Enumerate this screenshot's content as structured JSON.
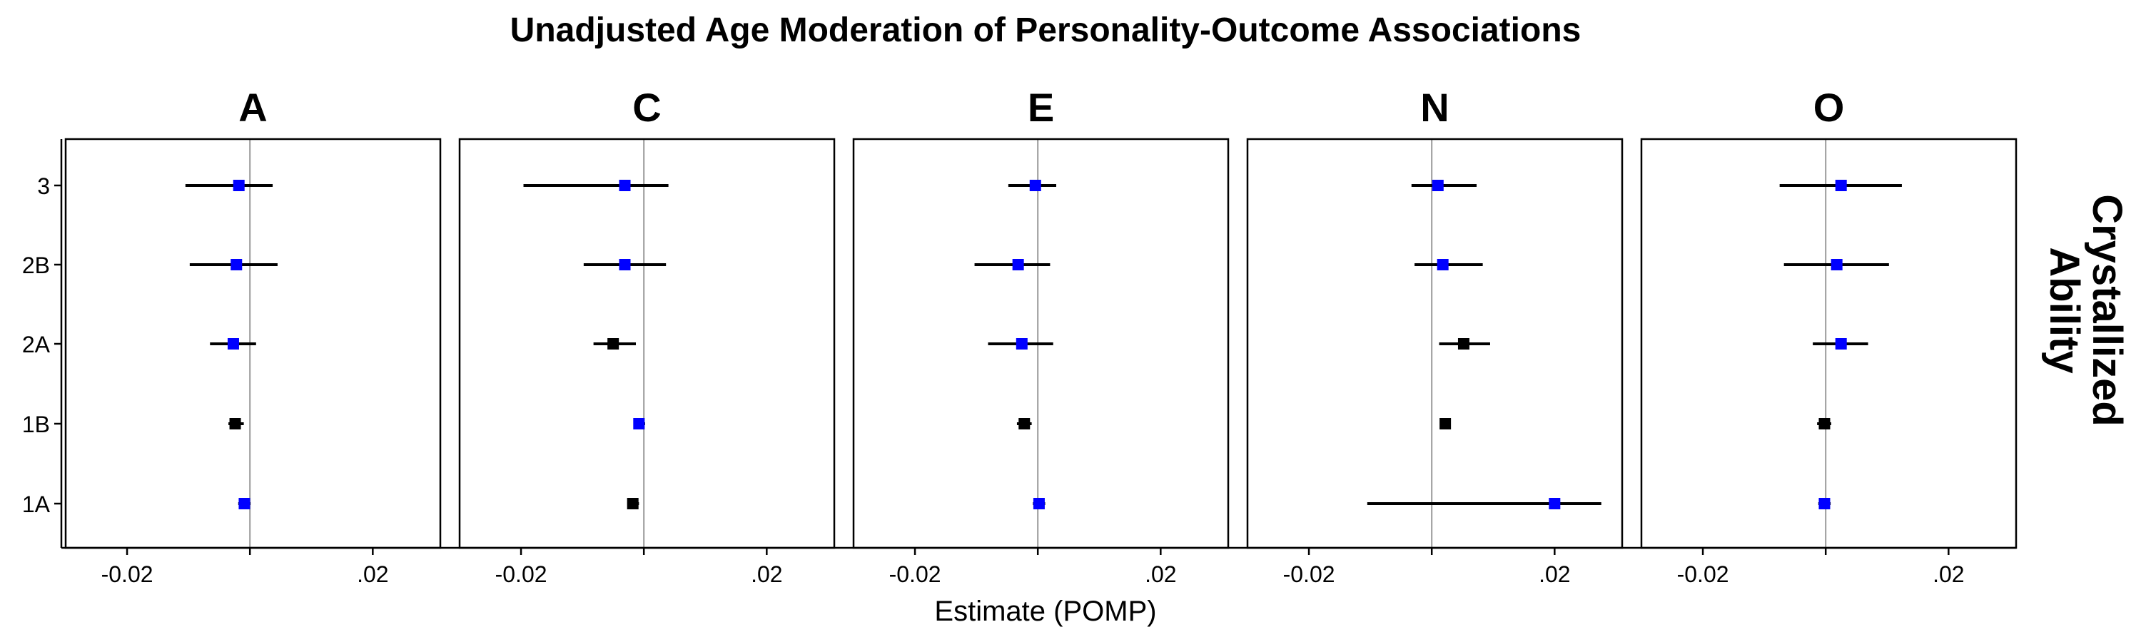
{
  "chart_data": {
    "type": "forest",
    "title": "Unadjusted Age Moderation of Personality-Outcome Associations",
    "xlabel": "Estimate (POMP)",
    "strip_label": "Crystallized\nAbility",
    "x_tick_labels": [
      "-0.02",
      ".02"
    ],
    "x_tick_values": [
      -0.02,
      0.02
    ],
    "xlim": [
      -0.03,
      0.031
    ],
    "categories": [
      "3",
      "2B",
      "2A",
      "1B",
      "1A"
    ],
    "reference_line": 0,
    "colors": {
      "significant": "#0000ff",
      "nonsignificant": "#000000",
      "reference": "#999999"
    },
    "panels": [
      {
        "name": "A",
        "points": [
          {
            "cat": "3",
            "est": -0.0018,
            "lo": -0.0105,
            "hi": 0.0037,
            "sig": true
          },
          {
            "cat": "2B",
            "est": -0.0022,
            "lo": -0.0098,
            "hi": 0.0045,
            "sig": true
          },
          {
            "cat": "2A",
            "est": -0.0027,
            "lo": -0.0065,
            "hi": 0.001,
            "sig": true
          },
          {
            "cat": "1B",
            "est": -0.0024,
            "lo": -0.0035,
            "hi": -0.001,
            "sig": false
          },
          {
            "cat": "1A",
            "est": -0.0009,
            "lo": -0.0019,
            "hi": 0.0001,
            "sig": true
          }
        ]
      },
      {
        "name": "C",
        "points": [
          {
            "cat": "3",
            "est": -0.0031,
            "lo": -0.0196,
            "hi": 0.004,
            "sig": true
          },
          {
            "cat": "2B",
            "est": -0.0031,
            "lo": -0.0098,
            "hi": 0.0036,
            "sig": true
          },
          {
            "cat": "2A",
            "est": -0.005,
            "lo": -0.0082,
            "hi": -0.0013,
            "sig": false
          },
          {
            "cat": "1B",
            "est": -0.0008,
            "lo": -0.0017,
            "hi": 0.0002,
            "sig": true
          },
          {
            "cat": "1A",
            "est": -0.0018,
            "lo": -0.0027,
            "hi": -0.0008,
            "sig": false
          }
        ]
      },
      {
        "name": "E",
        "points": [
          {
            "cat": "3",
            "est": -0.0004,
            "lo": -0.0048,
            "hi": 0.003,
            "sig": true
          },
          {
            "cat": "2B",
            "est": -0.0032,
            "lo": -0.0103,
            "hi": 0.002,
            "sig": true
          },
          {
            "cat": "2A",
            "est": -0.0026,
            "lo": -0.0081,
            "hi": 0.0025,
            "sig": true
          },
          {
            "cat": "1B",
            "est": -0.0022,
            "lo": -0.0034,
            "hi": -0.001,
            "sig": false
          },
          {
            "cat": "1A",
            "est": 0.0002,
            "lo": -0.0008,
            "hi": 0.0012,
            "sig": true
          }
        ]
      },
      {
        "name": "N",
        "points": [
          {
            "cat": "3",
            "est": 0.001,
            "lo": -0.0033,
            "hi": 0.0073,
            "sig": true
          },
          {
            "cat": "2B",
            "est": 0.0018,
            "lo": -0.0028,
            "hi": 0.0083,
            "sig": true
          },
          {
            "cat": "2A",
            "est": 0.0052,
            "lo": 0.0012,
            "hi": 0.0095,
            "sig": false
          },
          {
            "cat": "1B",
            "est": 0.0022,
            "lo": 0.0014,
            "hi": 0.003,
            "sig": false
          },
          {
            "cat": "1A",
            "est": 0.02,
            "lo": -0.0105,
            "hi": 0.0276,
            "sig": true
          }
        ]
      },
      {
        "name": "O",
        "points": [
          {
            "cat": "3",
            "est": 0.0025,
            "lo": -0.0075,
            "hi": 0.0124,
            "sig": true
          },
          {
            "cat": "2B",
            "est": 0.0018,
            "lo": -0.0068,
            "hi": 0.0103,
            "sig": true
          },
          {
            "cat": "2A",
            "est": 0.0025,
            "lo": -0.0021,
            "hi": 0.0069,
            "sig": true
          },
          {
            "cat": "1B",
            "est": -0.0002,
            "lo": -0.0014,
            "hi": 0.0009,
            "sig": false
          },
          {
            "cat": "1A",
            "est": -0.0002,
            "lo": -0.0012,
            "hi": 0.0008,
            "sig": true
          }
        ]
      }
    ]
  }
}
